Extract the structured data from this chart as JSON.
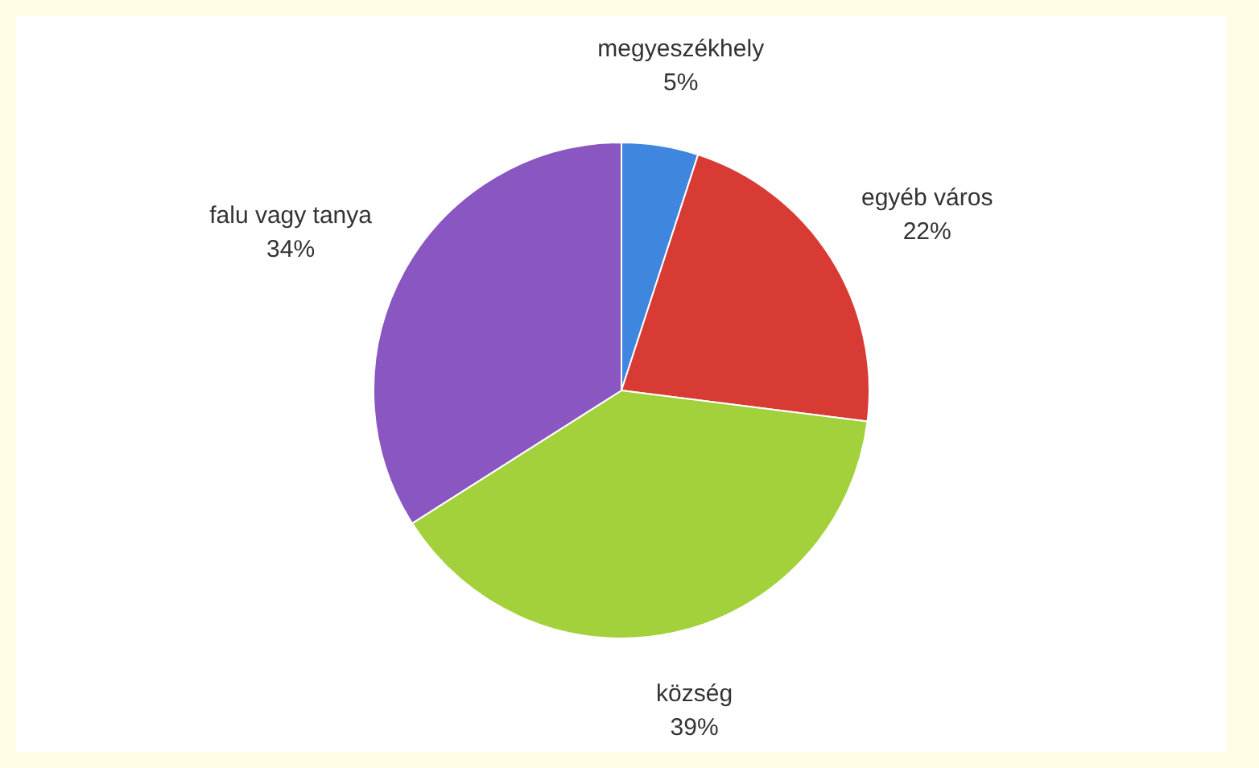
{
  "chart_data": {
    "type": "pie",
    "categories": [
      "megyeszékhely",
      "egyéb város",
      "község",
      "falu vagy tanya"
    ],
    "values": [
      5,
      22,
      39,
      34
    ],
    "colors": [
      "#3f86de",
      "#d83a34",
      "#a2d13c",
      "#8956c2"
    ],
    "value_labels": [
      "5%",
      "22%",
      "39%",
      "34%"
    ],
    "legend": false
  }
}
